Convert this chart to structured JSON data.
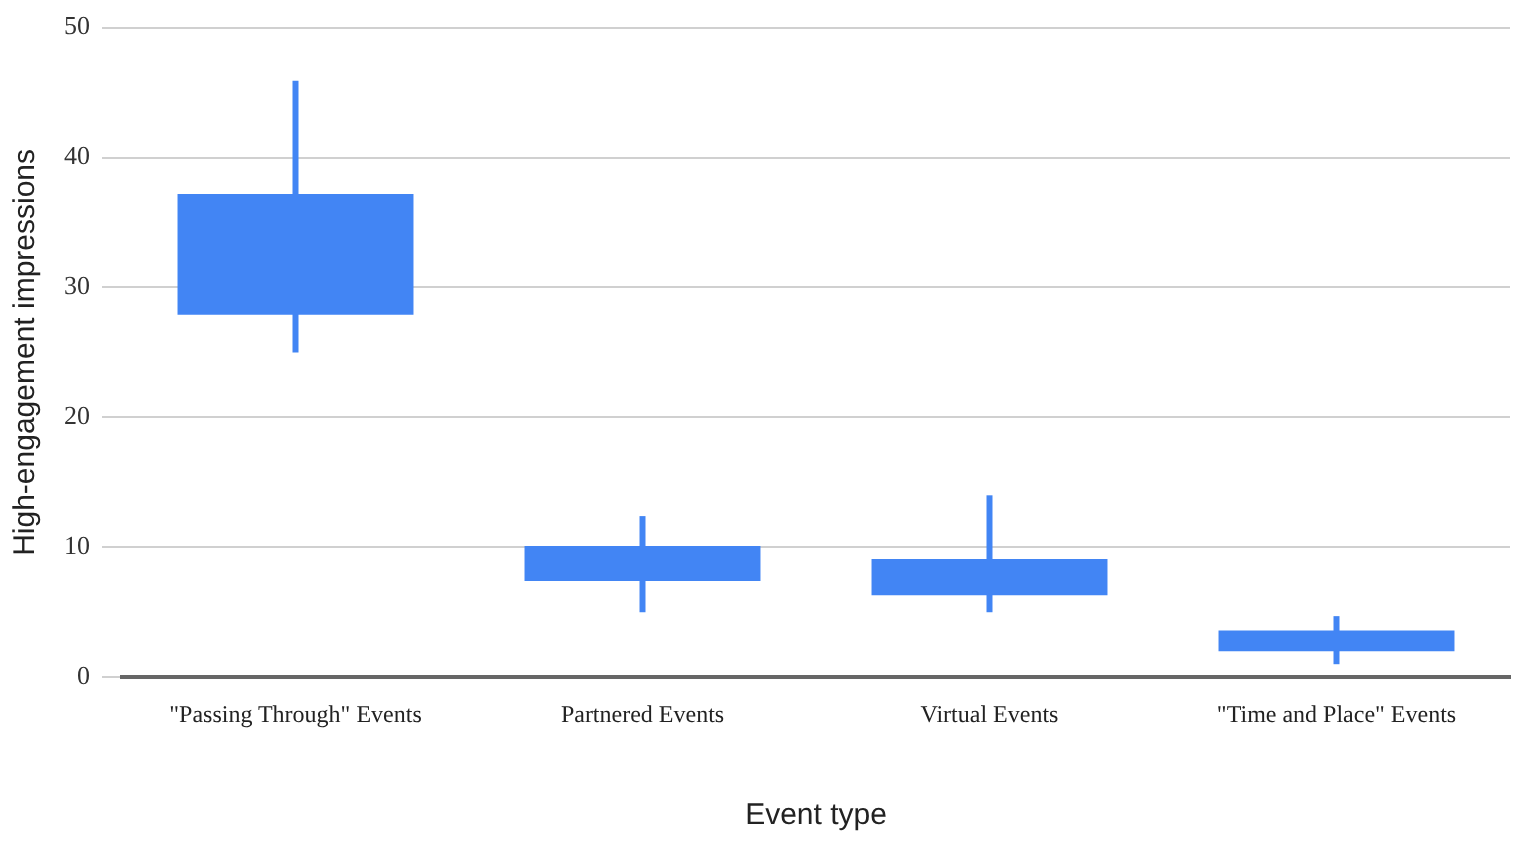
{
  "chart_data": {
    "type": "candlestick",
    "xlabel": "Event type",
    "ylabel": "High-engagement impressions",
    "categories": [
      "\"Passing Through\" Events",
      "Partnered Events",
      "Virtual Events",
      "\"Time and Place\" Events"
    ],
    "ohlc": [
      [
        37.2,
        45.9,
        25.0,
        27.9
      ],
      [
        10.1,
        12.4,
        5.0,
        7.4
      ],
      [
        9.1,
        14.0,
        5.0,
        6.3
      ],
      [
        3.6,
        4.7,
        1.0,
        2.0
      ]
    ],
    "color": "#4285f4",
    "ylim": [
      0,
      50
    ],
    "yticks": [
      0,
      10,
      20,
      30,
      40,
      50
    ],
    "grid": "y",
    "legend": false
  }
}
